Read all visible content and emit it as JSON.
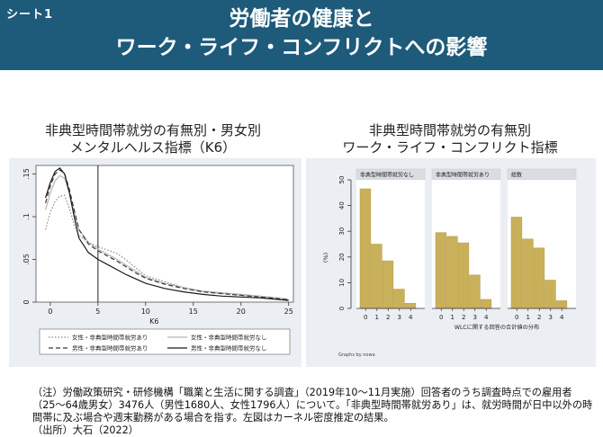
{
  "header": {
    "sheet_label": "シート1",
    "title_line1": "労働者の健康と",
    "title_line2": "ワーク・ライフ・コンフリクトへの影響"
  },
  "left_chart": {
    "title_line1": "非典型時間帯就労の有無別・男女別",
    "title_line2": "メンタルヘルス指標（K6）"
  },
  "right_chart": {
    "title_line1": "非典型時間帯就労の有無別",
    "title_line2": "ワーク・ライフ・コンフリクト指標"
  },
  "chart_data": [
    {
      "type": "line",
      "xlabel": "K6",
      "ylabel": "",
      "xlim": [
        0,
        25
      ],
      "ylim": [
        0,
        0.16
      ],
      "x_ticks": [
        0,
        5,
        10,
        15,
        20,
        25
      ],
      "y_ticks": [
        0,
        0.05,
        0.1,
        0.15
      ],
      "y_tick_labels": [
        "0",
        ".05",
        ".1",
        ".15"
      ],
      "vertical_reference_line": 5,
      "legend_position": "bottom",
      "series": [
        {
          "name": "女性・非典型時間帯就労あり",
          "style": "dotted",
          "color": "#8a8a8a",
          "x": [
            -0.5,
            0,
            0.5,
            1,
            1.5,
            2,
            2.5,
            3,
            4,
            5,
            6,
            7,
            8,
            9,
            10,
            12,
            14,
            16,
            18,
            20,
            22,
            24,
            25
          ],
          "y": [
            0.085,
            0.105,
            0.118,
            0.124,
            0.125,
            0.11,
            0.09,
            0.078,
            0.07,
            0.065,
            0.061,
            0.057,
            0.049,
            0.04,
            0.031,
            0.024,
            0.017,
            0.012,
            0.01,
            0.008,
            0.006,
            0.004,
            0.003
          ]
        },
        {
          "name": "女性・非典型時間帯就労なし",
          "style": "solid",
          "color": "#b5b5b5",
          "x": [
            -0.5,
            0,
            0.5,
            1,
            1.5,
            2,
            2.5,
            3,
            4,
            5,
            6,
            7,
            8,
            9,
            10,
            12,
            14,
            16,
            18,
            20,
            22,
            24,
            25
          ],
          "y": [
            0.108,
            0.128,
            0.142,
            0.148,
            0.145,
            0.128,
            0.105,
            0.085,
            0.07,
            0.062,
            0.056,
            0.05,
            0.043,
            0.036,
            0.029,
            0.022,
            0.017,
            0.013,
            0.011,
            0.009,
            0.007,
            0.005,
            0.003
          ]
        },
        {
          "name": "男性・非典型時間帯就労あり",
          "style": "dashed",
          "color": "#3a3a3a",
          "x": [
            -0.5,
            0,
            0.5,
            1,
            1.5,
            2,
            2.5,
            3,
            4,
            5,
            6,
            7,
            8,
            9,
            10,
            12,
            14,
            16,
            18,
            20,
            22,
            24,
            25
          ],
          "y": [
            0.116,
            0.136,
            0.15,
            0.155,
            0.15,
            0.132,
            0.108,
            0.085,
            0.068,
            0.06,
            0.054,
            0.048,
            0.041,
            0.034,
            0.028,
            0.021,
            0.016,
            0.012,
            0.01,
            0.008,
            0.006,
            0.004,
            0.003
          ]
        },
        {
          "name": "男性・非典型時間帯就労なし",
          "style": "solid",
          "color": "#1a1a1a",
          "x": [
            -0.5,
            0,
            0.5,
            1,
            1.5,
            2,
            2.5,
            3,
            4,
            5,
            6,
            7,
            8,
            9,
            10,
            12,
            14,
            16,
            18,
            20,
            22,
            24,
            25
          ],
          "y": [
            0.122,
            0.14,
            0.153,
            0.157,
            0.15,
            0.128,
            0.1,
            0.075,
            0.058,
            0.05,
            0.044,
            0.038,
            0.032,
            0.027,
            0.022,
            0.016,
            0.012,
            0.009,
            0.007,
            0.006,
            0.005,
            0.003,
            0.002
          ]
        }
      ]
    },
    {
      "type": "bar",
      "ylabel": "(%)",
      "xlabel": "WLCに関する回答の合計値の分布",
      "note": "Graphs by nowa",
      "categories": [
        "0",
        "1",
        "2",
        "3",
        "4"
      ],
      "ylim": [
        0,
        50
      ],
      "y_ticks": [
        0,
        10,
        20,
        30,
        40,
        50
      ],
      "bar_color": "#c9b05a",
      "panels": [
        {
          "title": "非典型時間帯就労なし",
          "values": [
            46.5,
            25,
            18.5,
            7.5,
            2
          ]
        },
        {
          "title": "非典型時間帯就労あり",
          "values": [
            29.5,
            28,
            25.5,
            13,
            3.5
          ]
        },
        {
          "title": "総数",
          "values": [
            35.5,
            27,
            23.5,
            11,
            3
          ]
        }
      ]
    }
  ],
  "notes": {
    "line1": "（注）労働政策研究・研修機構「職業と生活に関する調査」（2019年10～11月実施）回答者のうち調査時点での雇用者",
    "line2": "（25～64歳男女）3476人（男性1680人、女性1796人）について。「非典型時間帯就労あり」は、就労時間が日中以外の時",
    "line3": "間帯に及ぶ場合や週末勤務がある場合を指す。左図はカーネル密度推定の結果。",
    "line4": "（出所）大石（2022）"
  }
}
